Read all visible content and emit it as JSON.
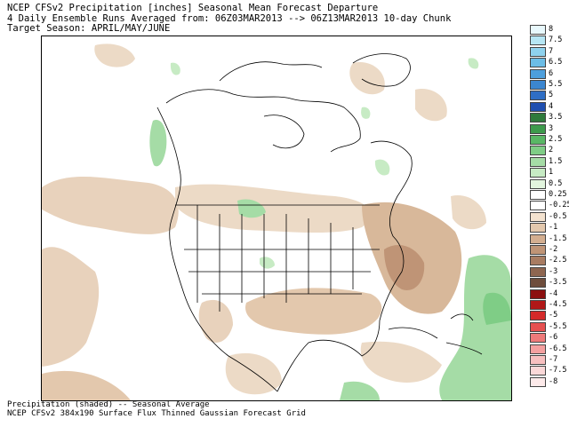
{
  "title": {
    "line1": "NCEP CFSv2 Precipitation [inches] Seasonal Mean Forecast Departure",
    "line2": "4 Daily Ensemble Runs Averaged from: 06Z03MAR2013 --> 06Z13MAR2013 10-day Chunk",
    "line3": "Target Season: APRIL/MAY/JUNE"
  },
  "footer": {
    "line1": "Precipitation (shaded) -- Seasonal Average",
    "line2": "NCEP CFSv2 384x190 Surface Flux Thinned Gaussian Forecast Grid"
  },
  "legend": {
    "entries": [
      {
        "label": "8",
        "color": "#e8f8fc"
      },
      {
        "label": "7.5",
        "color": "#b6e6f4"
      },
      {
        "label": "7",
        "color": "#8fd2ee"
      },
      {
        "label": "6.5",
        "color": "#6cbde6"
      },
      {
        "label": "6",
        "color": "#4d9fdc"
      },
      {
        "label": "5.5",
        "color": "#3b86d0"
      },
      {
        "label": "5",
        "color": "#2f6ec4"
      },
      {
        "label": "4",
        "color": "#1f4fb0"
      },
      {
        "label": "3.5",
        "color": "#2f7a3c"
      },
      {
        "label": "3",
        "color": "#3d9a4c"
      },
      {
        "label": "2.5",
        "color": "#59b765"
      },
      {
        "label": "2",
        "color": "#7fcd86"
      },
      {
        "label": "1.5",
        "color": "#a5dca6"
      },
      {
        "label": "1",
        "color": "#c7ebc4"
      },
      {
        "label": "0.5",
        "color": "#e2f5de"
      },
      {
        "label": "0.25",
        "color": "#ffffff"
      },
      {
        "label": "-0.25",
        "color": "#ffffff"
      },
      {
        "label": "-0.5",
        "color": "#f3e2cf"
      },
      {
        "label": "-1",
        "color": "#e3c8ad"
      },
      {
        "label": "-1.5",
        "color": "#d3ae90"
      },
      {
        "label": "-2",
        "color": "#bf9476"
      },
      {
        "label": "-2.5",
        "color": "#a87c62"
      },
      {
        "label": "-3",
        "color": "#8e6650"
      },
      {
        "label": "-3.5",
        "color": "#6e4d3c"
      },
      {
        "label": "-4",
        "color": "#8c1010"
      },
      {
        "label": "-4.5",
        "color": "#b01818"
      },
      {
        "label": "-5",
        "color": "#d42a2a"
      },
      {
        "label": "-5.5",
        "color": "#e65050"
      },
      {
        "label": "-6",
        "color": "#ee7a7a"
      },
      {
        "label": "-6.5",
        "color": "#f4a0a0"
      },
      {
        "label": "-7",
        "color": "#f8c0c0"
      },
      {
        "label": "-7.5",
        "color": "#fbd8d8"
      },
      {
        "label": "-8",
        "color": "#fdeaea"
      }
    ]
  }
}
